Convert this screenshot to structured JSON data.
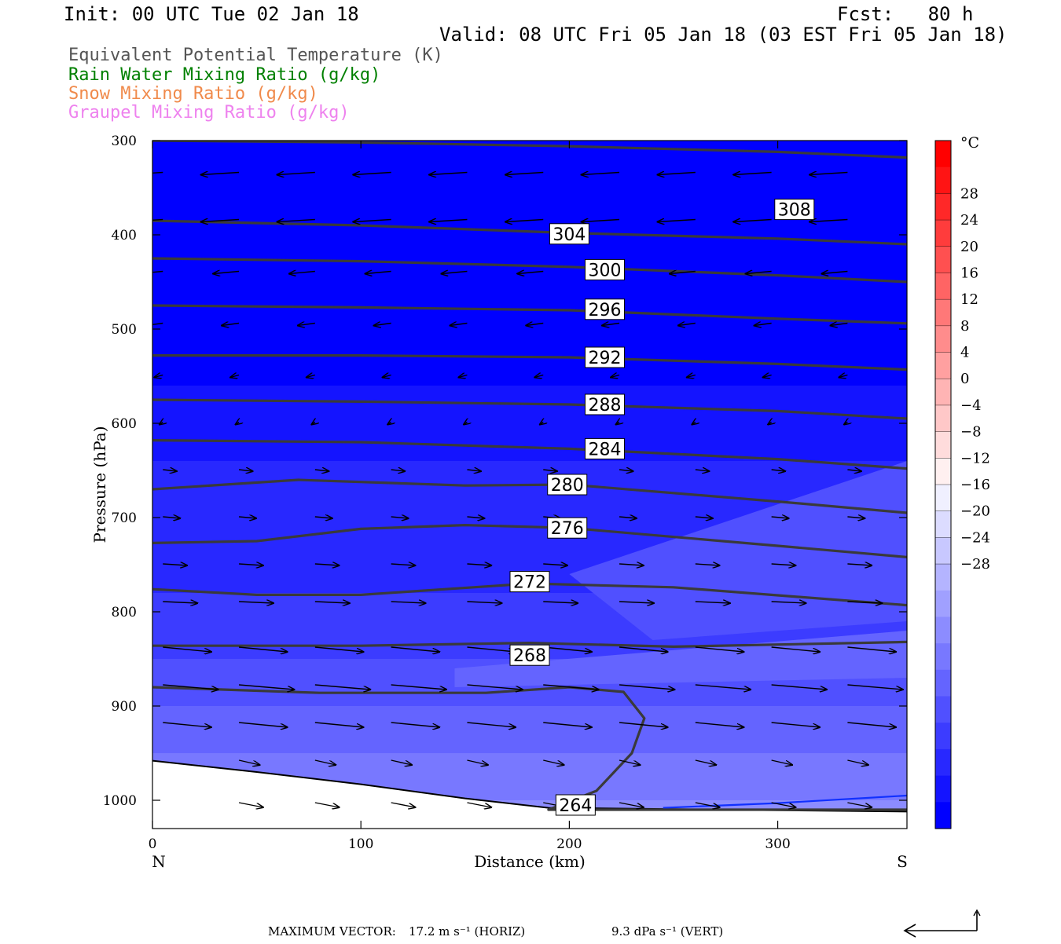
{
  "header": {
    "init": "Init: 00 UTC Tue 02 Jan 18",
    "fcst": "Fcst:   80 h",
    "valid": "Valid: 08 UTC Fri 05 Jan 18 (03 EST Fri 05 Jan 18)"
  },
  "legend": [
    {
      "text": "Equivalent Potential Temperature (K)",
      "color": "#555555"
    },
    {
      "text": "Rain Water Mixing Ratio (g/kg)",
      "color": "#008000"
    },
    {
      "text": "Snow Mixing Ratio (g/kg)",
      "color": "#f08a4b"
    },
    {
      "text": "Graupel Mixing Ratio (g/kg)",
      "color": "#ee82ee"
    }
  ],
  "footer": {
    "max_vector_label": "MAXIMUM VECTOR:",
    "horiz": "17.2 m s⁻¹ (HORIZ)",
    "vert": "9.3 dPa s⁻¹ (VERT)"
  },
  "chart_data": {
    "type": "cross-section",
    "xlabel": "Distance (km)",
    "ylabel": "Pressure (hPa)",
    "xlim": [
      0,
      362
    ],
    "ylim": [
      1030,
      300
    ],
    "y_scale": "linear",
    "x_ticks": [
      0,
      100,
      200,
      300
    ],
    "y_ticks": [
      300,
      400,
      500,
      600,
      700,
      800,
      900,
      1000
    ],
    "x_end_labels": {
      "left": "N",
      "right": "S"
    },
    "colorbar": {
      "unit": "°C",
      "tick_labels": [
        "28",
        "24",
        "20",
        "16",
        "12",
        "8",
        "4",
        "0",
        "−4",
        "−8",
        "−12",
        "−16",
        "−20",
        "−24",
        "−28"
      ],
      "colors": [
        "#0000ff",
        "#1414ff",
        "#2828ff",
        "#3c3cff",
        "#5050ff",
        "#6464ff",
        "#7878ff",
        "#8c8cff",
        "#a0a0ff",
        "#b4b4ff",
        "#c8c8ff",
        "#dcdcff",
        "#f0f0ff",
        "#fff0f0",
        "#ffdcdc",
        "#ffc8c8",
        "#ffb4b4",
        "#ffa0a0",
        "#ff8c8c",
        "#ff7878",
        "#ff6464",
        "#ff5050",
        "#ff3c3c",
        "#ff2828",
        "#ff1414",
        "#ff0000"
      ]
    },
    "theta_e_contours": [
      {
        "label": "308",
        "label_at": [
          308,
          373
        ],
        "points": [
          [
            0,
            300
          ],
          [
            100,
            302
          ],
          [
            200,
            306
          ],
          [
            300,
            312
          ],
          [
            362,
            318
          ]
        ]
      },
      {
        "label": "304",
        "label_at": [
          200,
          399
        ],
        "points": [
          [
            0,
            385
          ],
          [
            100,
            390
          ],
          [
            200,
            398
          ],
          [
            300,
            404
          ],
          [
            362,
            410
          ]
        ]
      },
      {
        "label": "300",
        "label_at": [
          217,
          437
        ],
        "points": [
          [
            0,
            425
          ],
          [
            100,
            428
          ],
          [
            200,
            434
          ],
          [
            300,
            443
          ],
          [
            362,
            450
          ]
        ]
      },
      {
        "label": "296",
        "label_at": [
          217,
          479
        ],
        "points": [
          [
            0,
            475
          ],
          [
            100,
            477
          ],
          [
            200,
            480
          ],
          [
            300,
            489
          ],
          [
            362,
            494
          ]
        ]
      },
      {
        "label": "292",
        "label_at": [
          217,
          530
        ],
        "points": [
          [
            0,
            528
          ],
          [
            100,
            528
          ],
          [
            200,
            530
          ],
          [
            300,
            537
          ],
          [
            362,
            543
          ]
        ]
      },
      {
        "label": "288",
        "label_at": [
          217,
          580
        ],
        "points": [
          [
            0,
            575
          ],
          [
            100,
            577
          ],
          [
            200,
            580
          ],
          [
            300,
            587
          ],
          [
            362,
            595
          ]
        ]
      },
      {
        "label": "284",
        "label_at": [
          217,
          627
        ],
        "points": [
          [
            0,
            618
          ],
          [
            100,
            620
          ],
          [
            200,
            627
          ],
          [
            300,
            638
          ],
          [
            362,
            648
          ]
        ]
      },
      {
        "label": "280",
        "label_at": [
          199,
          665
        ],
        "points": [
          [
            0,
            670
          ],
          [
            70,
            660
          ],
          [
            150,
            666
          ],
          [
            200,
            665
          ],
          [
            300,
            683
          ],
          [
            362,
            695
          ]
        ]
      },
      {
        "label": "276",
        "label_at": [
          199,
          711
        ],
        "points": [
          [
            0,
            727
          ],
          [
            50,
            725
          ],
          [
            100,
            712
          ],
          [
            150,
            708
          ],
          [
            200,
            711
          ],
          [
            300,
            730
          ],
          [
            362,
            742
          ]
        ]
      },
      {
        "label": "272",
        "label_at": [
          181,
          768
        ],
        "points": [
          [
            0,
            776
          ],
          [
            50,
            782
          ],
          [
            100,
            782
          ],
          [
            181,
            770
          ],
          [
            250,
            774
          ],
          [
            362,
            793
          ]
        ]
      },
      {
        "label": "268",
        "label_at": [
          181,
          846
        ],
        "points": [
          [
            0,
            836
          ],
          [
            100,
            836
          ],
          [
            181,
            833
          ],
          [
            250,
            837
          ],
          [
            362,
            832
          ]
        ]
      },
      {
        "label": "264",
        "label_at": [
          203,
          1005
        ],
        "points": [
          [
            0,
            880
          ],
          [
            80,
            886
          ],
          [
            160,
            886
          ],
          [
            200,
            880
          ],
          [
            226,
            885
          ],
          [
            236,
            913
          ],
          [
            230,
            950
          ],
          [
            213,
            990
          ],
          [
            190,
            1010
          ],
          [
            362,
            1010
          ]
        ]
      }
    ],
    "terrain_pressure": [
      [
        0,
        958
      ],
      [
        50,
        970
      ],
      [
        100,
        983
      ],
      [
        150,
        998
      ],
      [
        190,
        1008
      ],
      [
        362,
        1012
      ]
    ],
    "rain_water_contour": [
      [
        245,
        1008
      ],
      [
        300,
        1003
      ],
      [
        362,
        995
      ]
    ],
    "wind_vectors_rows_hpa": [
      335,
      385,
      440,
      495,
      550,
      600,
      650,
      700,
      750,
      790,
      840,
      880,
      920,
      960,
      1005
    ]
  }
}
